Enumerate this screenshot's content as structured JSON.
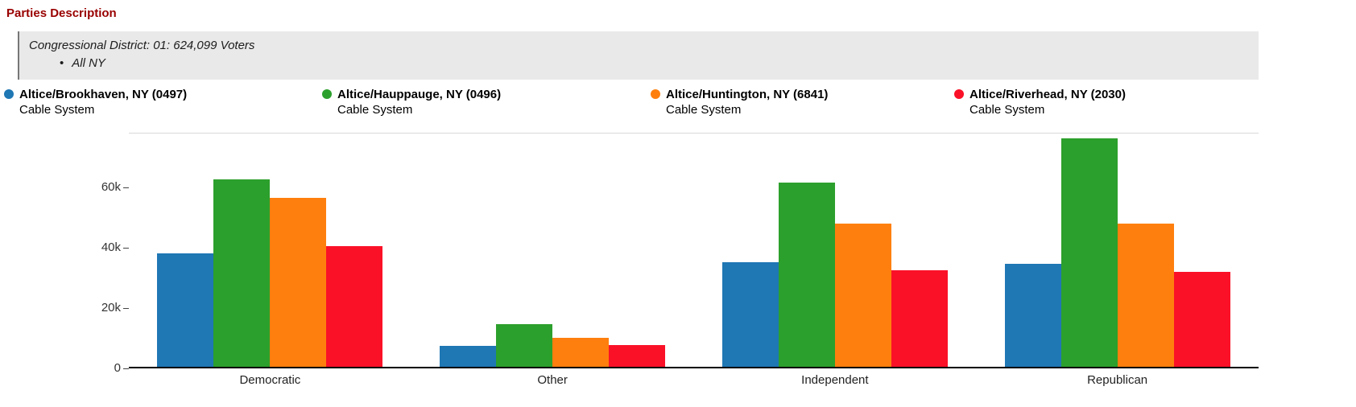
{
  "page": {
    "title": "Parties Description"
  },
  "subtitle": {
    "line1": "Congressional District: 01: 624,099 Voters",
    "bullet": "All NY"
  },
  "legend": {
    "items": [
      {
        "label": "Altice/Brookhaven, NY (0497)",
        "sublabel": "Cable System",
        "color": "#1f77b4"
      },
      {
        "label": "Altice/Hauppauge, NY (0496)",
        "sublabel": "Cable System",
        "color": "#2ca02c"
      },
      {
        "label": "Altice/Huntington, NY (6841)",
        "sublabel": "Cable System",
        "color": "#ff7f0e"
      },
      {
        "label": "Altice/Riverhead, NY (2030)",
        "sublabel": "Cable System",
        "color": "#fa1128"
      }
    ]
  },
  "chart_data": {
    "type": "bar",
    "title": "Parties Description",
    "categories": [
      "Democratic",
      "Other",
      "Independent",
      "Republican"
    ],
    "series": [
      {
        "name": "Altice/Brookhaven, NY (0497) Cable System",
        "color": "#1f77b4",
        "values": [
          37500,
          6800,
          34500,
          34000
        ]
      },
      {
        "name": "Altice/Hauppauge, NY (0496) Cable System",
        "color": "#2ca02c",
        "values": [
          62000,
          14000,
          61000,
          75500
        ]
      },
      {
        "name": "Altice/Huntington, NY (6841) Cable System",
        "color": "#ff7f0e",
        "values": [
          56000,
          9500,
          47500,
          47500
        ]
      },
      {
        "name": "Altice/Riverhead, NY (2030) Cable System",
        "color": "#fa1128",
        "values": [
          40000,
          7300,
          32000,
          31500
        ]
      }
    ],
    "xlabel": "",
    "ylabel": "",
    "ylim": [
      0,
      78000
    ],
    "yticks": [
      0,
      20000,
      40000,
      60000
    ],
    "ytick_labels": [
      "0",
      "20k",
      "40k",
      "60k"
    ],
    "grid": false,
    "legend_position": "top"
  }
}
